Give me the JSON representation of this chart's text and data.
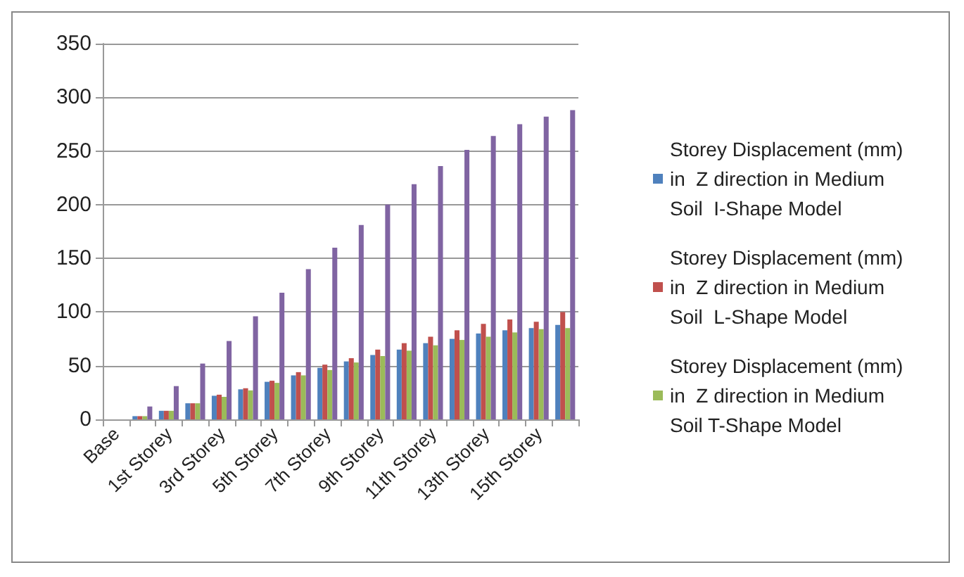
{
  "chart_data": {
    "type": "bar",
    "categories": [
      "Base",
      null,
      "1st Storey",
      null,
      "3rd Storey",
      null,
      "5th Storey",
      null,
      "7th Storey",
      null,
      "9th Storey",
      null,
      "11th Storey",
      null,
      "13th Storey",
      null,
      "15th Storey",
      null
    ],
    "series": [
      {
        "name": "Storey Displacement (mm) in  Z direction in Medium Soil  I-Shape Model",
        "color": "#4f81bd",
        "values": [
          0,
          3,
          8,
          15,
          22,
          28,
          35,
          41,
          48,
          54,
          60,
          65,
          71,
          75,
          80,
          83,
          85,
          88
        ]
      },
      {
        "name": "Storey Displacement (mm) in  Z direction in Medium Soil  L-Shape Model",
        "color": "#c0504d",
        "values": [
          0,
          3,
          8,
          15,
          23,
          29,
          36,
          44,
          51,
          57,
          65,
          71,
          77,
          83,
          89,
          93,
          91,
          100
        ]
      },
      {
        "name": "Storey Displacement (mm) in  Z direction in Medium Soil T-Shape Model",
        "color": "#9bbb59",
        "values": [
          0,
          3,
          8,
          15,
          21,
          27,
          34,
          41,
          46,
          53,
          59,
          64,
          69,
          74,
          77,
          81,
          84,
          85
        ]
      },
      {
        "color": "#8064a2",
        "values": [
          0,
          12,
          31,
          52,
          73,
          96,
          118,
          140,
          160,
          181,
          200,
          219,
          236,
          251,
          264,
          275,
          282,
          288
        ]
      }
    ],
    "ylim": [
      0,
      350
    ],
    "yticks": [
      0,
      50,
      100,
      150,
      200,
      250,
      300,
      350
    ],
    "grid": "y",
    "legend": "right"
  }
}
